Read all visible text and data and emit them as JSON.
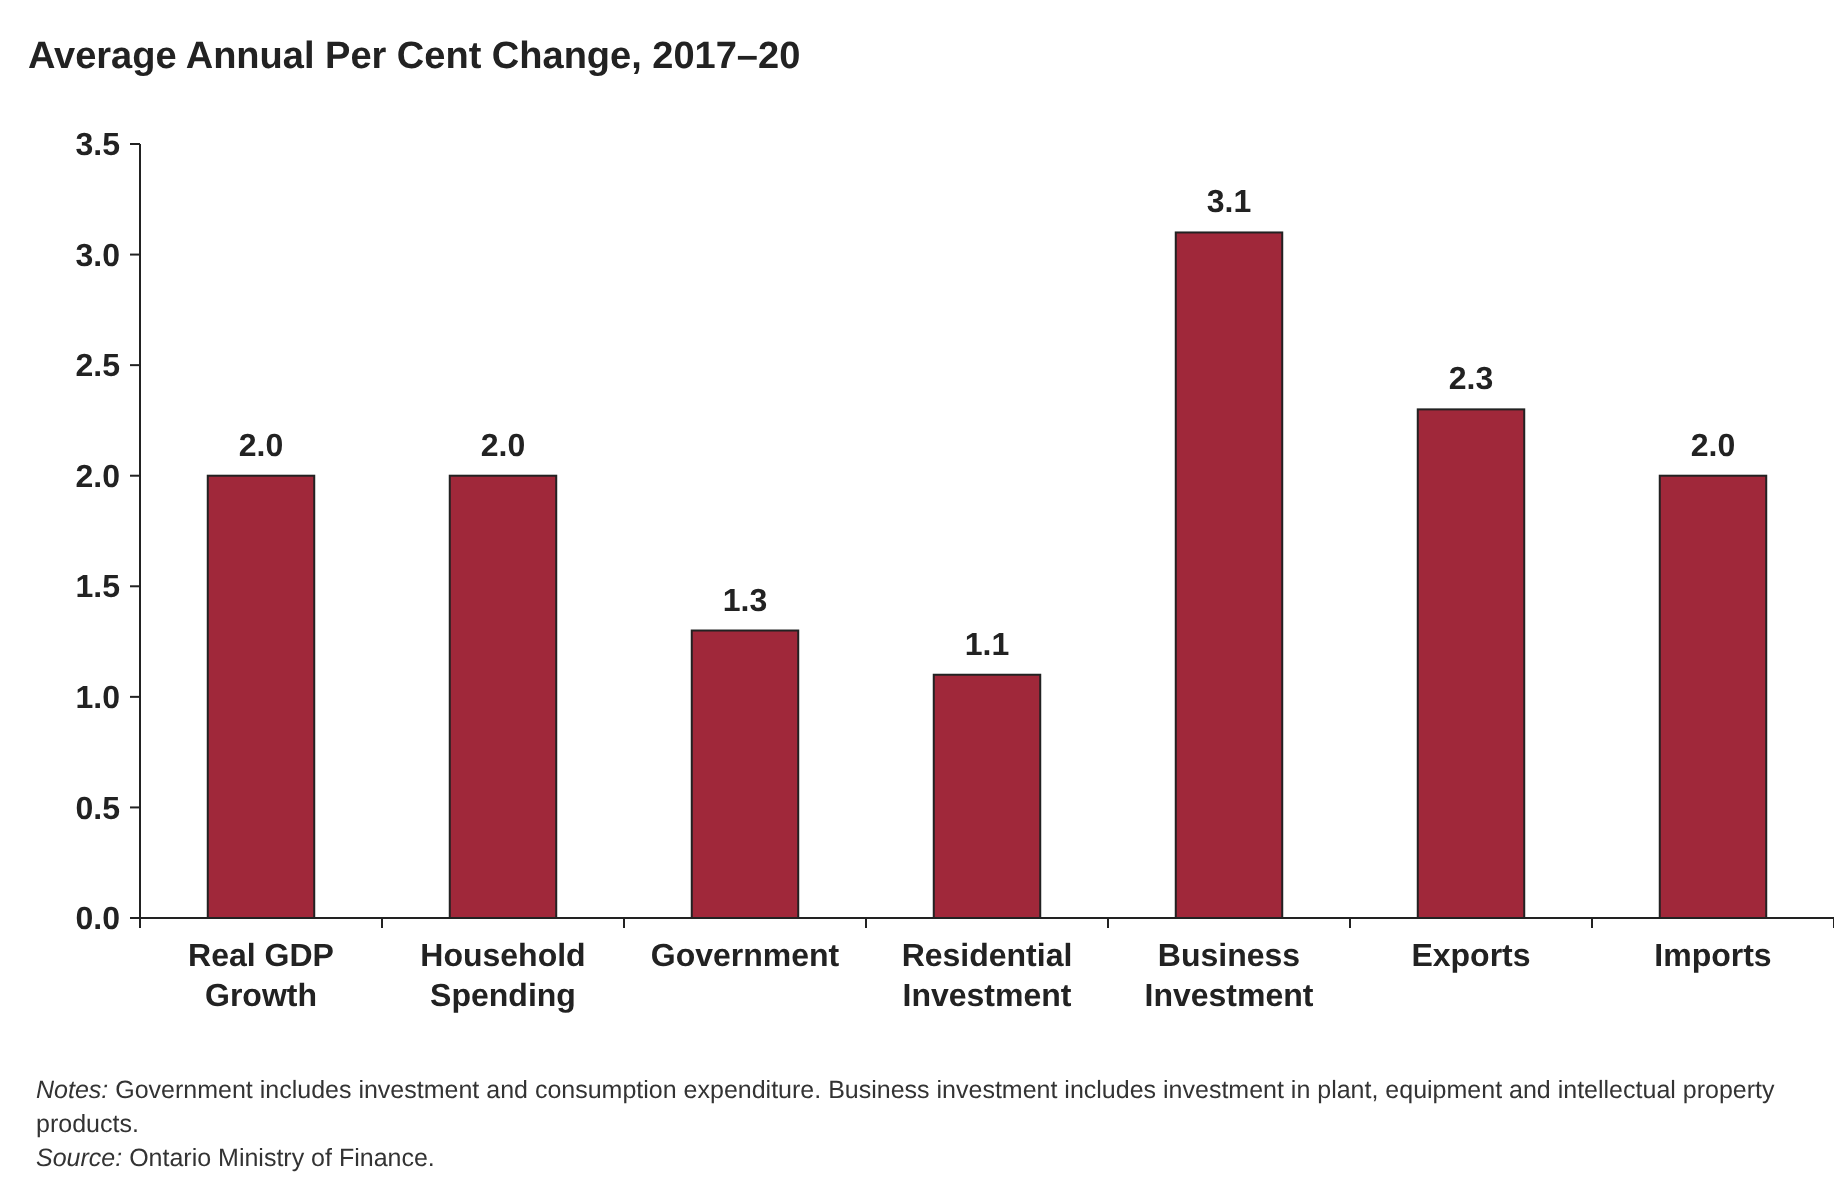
{
  "chart_data": {
    "type": "bar",
    "title": "Average Annual Per Cent Change, 2017–20",
    "categories": [
      "Real GDP Growth",
      "Household Spending",
      "Government",
      "Residential Investment",
      "Business Investment",
      "Exports",
      "Imports"
    ],
    "values": [
      2.0,
      2.0,
      1.3,
      1.1,
      3.1,
      2.3,
      2.0
    ],
    "color": "#a0283a",
    "ylim": [
      0,
      3.5
    ],
    "yticks": [
      {
        "value": 0,
        "label": "0.0"
      },
      {
        "value": 0.5,
        "label": "0.5"
      },
      {
        "value": 1,
        "label": "1.0"
      },
      {
        "value": 1.5,
        "label": "1.5"
      },
      {
        "value": 2,
        "label": "2.0"
      },
      {
        "value": 2.5,
        "label": "2.5"
      },
      {
        "value": 3,
        "label": "3.0"
      },
      {
        "value": 3.5,
        "label": "3.5"
      }
    ],
    "value_labels": [
      "2.0",
      "2.0",
      "1.3",
      "1.1",
      "3.1",
      "2.3",
      "2.0"
    ],
    "annotations": [
      "Notes: Government includes investment and consumption expenditure. Business investment includes investment in plant, equipment and intellectual property products.",
      "Source: Ontario Ministry of Finance."
    ]
  }
}
